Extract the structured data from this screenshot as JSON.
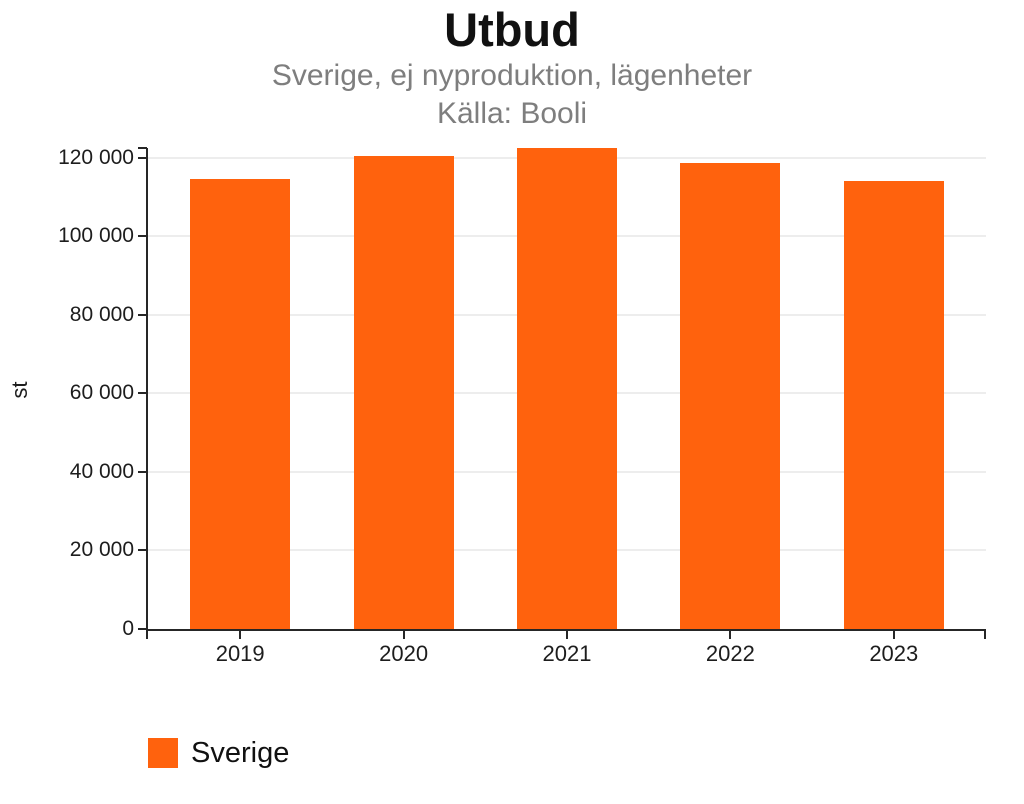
{
  "chart_data": {
    "type": "bar",
    "title": "Utbud",
    "subtitle": "Sverige, ej nyproduktion, lägenheter",
    "source": "Källa: Booli",
    "ylabel": "st",
    "xlabel": "",
    "categories": [
      "2019",
      "2020",
      "2021",
      "2022",
      "2023"
    ],
    "series": [
      {
        "name": "Sverige",
        "color": "#FF620D",
        "values": [
          114700,
          120500,
          122500,
          118600,
          114100
        ]
      }
    ],
    "ylim": [
      0,
      122500
    ],
    "yticks": [
      0,
      20000,
      40000,
      60000,
      80000,
      100000,
      120000
    ],
    "ytick_labels": [
      "0",
      "20 000",
      "40 000",
      "60 000",
      "80 000",
      "100 000",
      "120 000"
    ],
    "grid": true,
    "legend_position": "bottom-left"
  },
  "legend": {
    "items": [
      {
        "label": "Sverige",
        "color": "#FF620D"
      }
    ]
  },
  "colors": {
    "accent": "#FF620D",
    "axis": "#262626",
    "gridline": "#EDEDED",
    "title_text": "#111111",
    "subtitle_text": "#7E7E7E",
    "tick_text": "#1D1D1D",
    "background": "#FFFFFF"
  }
}
